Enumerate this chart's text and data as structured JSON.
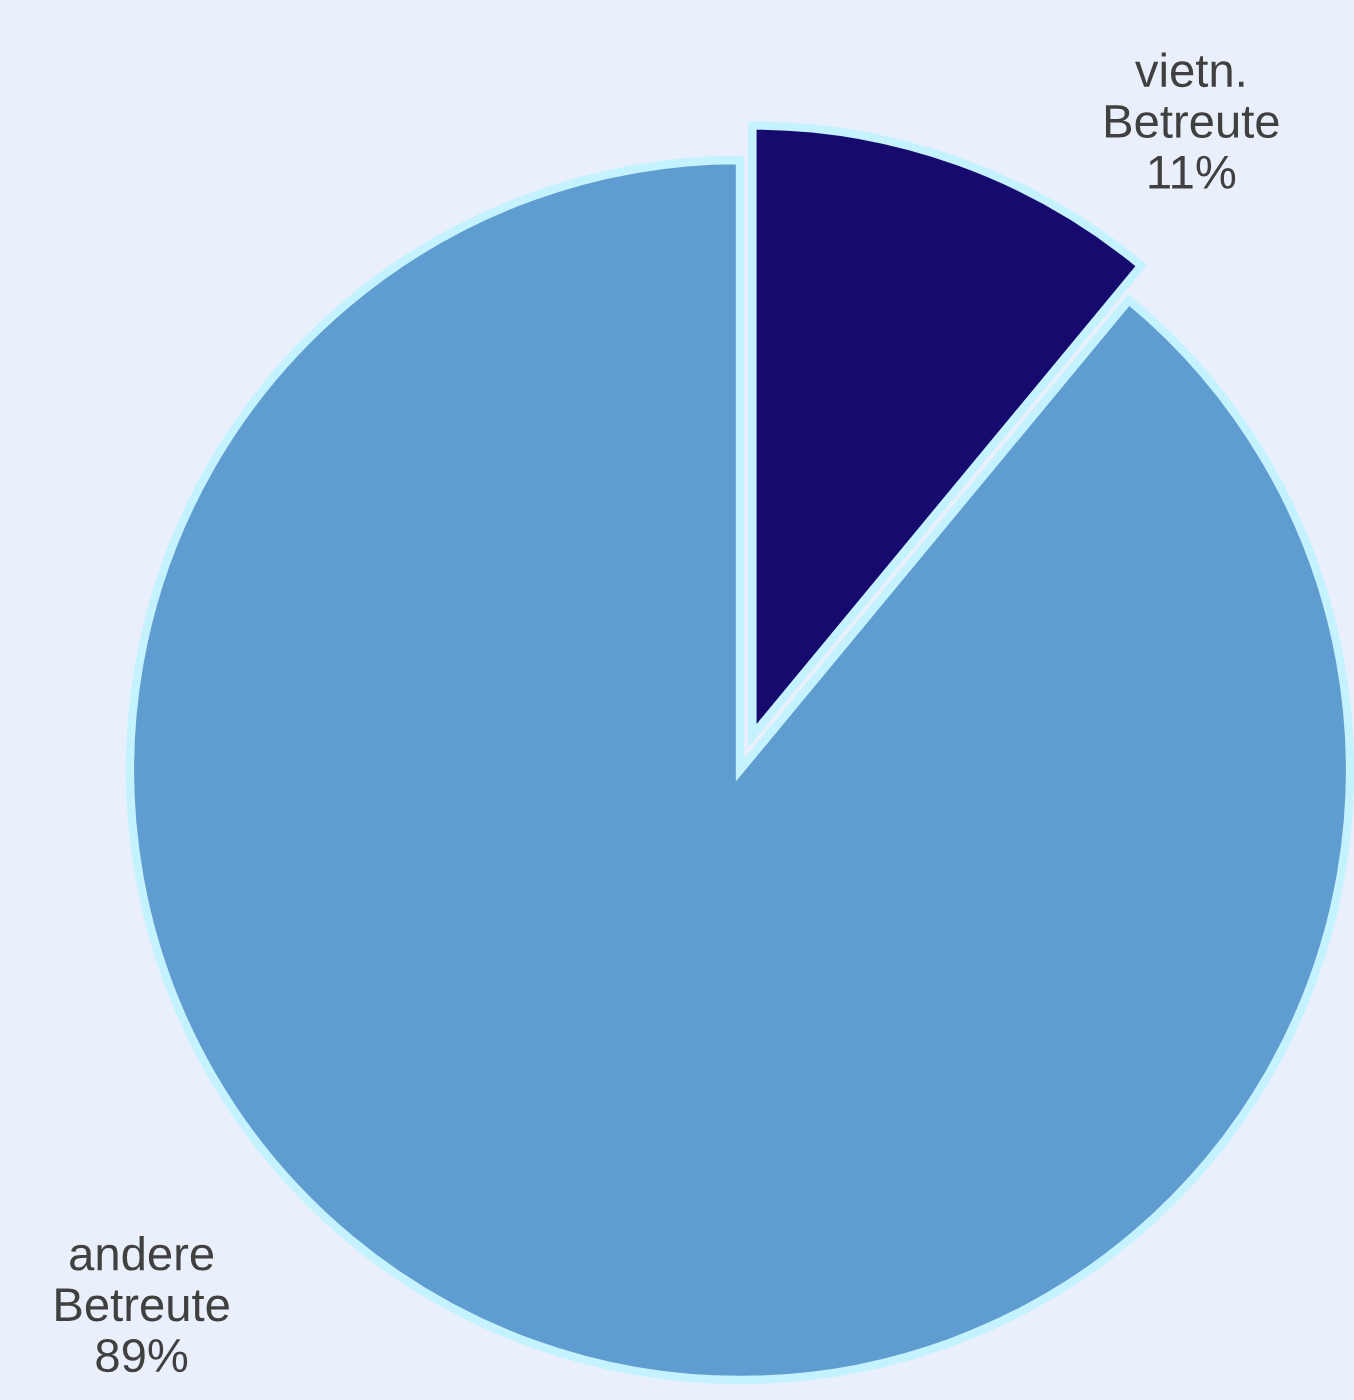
{
  "chart_data": {
    "type": "pie",
    "categories": [
      "vietn. Betreute",
      "andere Betreute"
    ],
    "values": [
      11,
      89
    ],
    "value_labels": [
      "11%",
      "89%"
    ],
    "colors": [
      "#170a6e",
      "#5f9ccf"
    ]
  }
}
